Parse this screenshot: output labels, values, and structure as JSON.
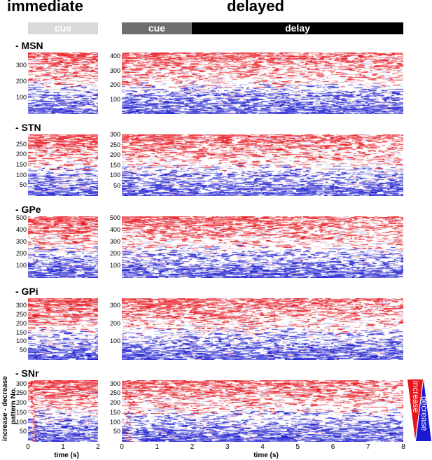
{
  "header": {
    "immediate_title": "immediate",
    "delayed_title": "delayed",
    "immediate_cue_label": "cue",
    "delayed_cue_label": "cue",
    "delayed_delay_label": "delay"
  },
  "y_axis_label_line1": "increase - decrease",
  "y_axis_label_line2": "pattern No.",
  "x_axis_label": "time (s)",
  "legend": {
    "increase": "increase",
    "decrease": "decrease",
    "increase_color": "#e8141b",
    "decrease_color": "#1a1ad0"
  },
  "chart_data": {
    "type": "heatmap",
    "colors": {
      "increase": "#e8141b",
      "decrease": "#1a1ad0",
      "neutral": "#ffffff"
    },
    "immediate_x_ticks": [
      "0",
      "1",
      "2"
    ],
    "immediate_xlim": [
      0,
      2
    ],
    "delayed_x_ticks": [
      "0",
      "1",
      "2",
      "3",
      "4",
      "5",
      "6",
      "7",
      "8"
    ],
    "delayed_xlim": [
      0,
      8
    ],
    "regions": [
      {
        "name": "- MSN",
        "immediate_ymax": 380,
        "immediate_ticks": [
          "300",
          "200",
          "100"
        ],
        "delayed_ymax": 430,
        "delayed_ticks": [
          "400",
          "300",
          "200",
          "100"
        ]
      },
      {
        "name": "- STN",
        "immediate_ymax": 300,
        "immediate_ticks": [
          "250",
          "200",
          "150",
          "100",
          "50"
        ],
        "delayed_ymax": 305,
        "delayed_ticks": [
          "300",
          "250",
          "200",
          "150",
          "100",
          "50"
        ]
      },
      {
        "name": "- GPe",
        "immediate_ymax": 520,
        "immediate_ticks": [
          "500",
          "400",
          "300",
          "200",
          "100"
        ],
        "delayed_ymax": 520,
        "delayed_ticks": [
          "500",
          "400",
          "300",
          "200",
          "100"
        ]
      },
      {
        "name": "- GPi",
        "immediate_ymax": 345,
        "immediate_ticks": [
          "300",
          "250",
          "200",
          "150",
          "100",
          "50"
        ],
        "delayed_ymax": 345,
        "delayed_ticks": [
          "300",
          "200",
          "100"
        ]
      },
      {
        "name": "- SNr",
        "immediate_ymax": 320,
        "immediate_ticks": [
          "300",
          "250",
          "200",
          "150",
          "100",
          "50"
        ],
        "delayed_ymax": 320,
        "delayed_ticks": [
          "300",
          "250",
          "200",
          "150",
          "100",
          "50"
        ]
      }
    ]
  }
}
